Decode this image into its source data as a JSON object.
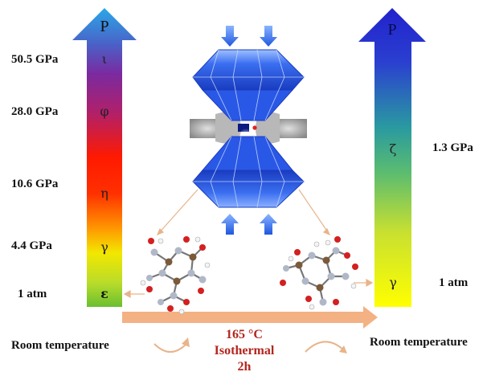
{
  "left_column": {
    "pressure_symbol": "P",
    "pressure_labels": [
      "50.5 GPa",
      "28.0 GPa",
      "10.6 GPa",
      "4.4 GPa",
      "1 atm"
    ],
    "phases": [
      "ι",
      "φ",
      "η",
      "γ",
      "ε"
    ]
  },
  "right_column": {
    "pressure_symbol": "P",
    "pressure_labels": [
      "1.3 GPa",
      "1 atm"
    ],
    "phases": [
      "ζ",
      "γ"
    ]
  },
  "conditions": {
    "temperature": "165 °C",
    "mode": "Isothermal",
    "duration": "2h"
  },
  "captions": {
    "start": "Room temperature",
    "end": "Room temperature"
  },
  "colors": {
    "left_arrow_top": "#2aa8e8",
    "left_arrow_mid": "#ff1a00",
    "left_arrow_bottom": "#6abf30",
    "right_arrow_top": "#2222cc",
    "right_arrow_bottom": "#ffff00",
    "diamond_blue": "#2f5ee0",
    "timeline_arrow": "#f4b183",
    "condition_text": "#b3261e"
  }
}
